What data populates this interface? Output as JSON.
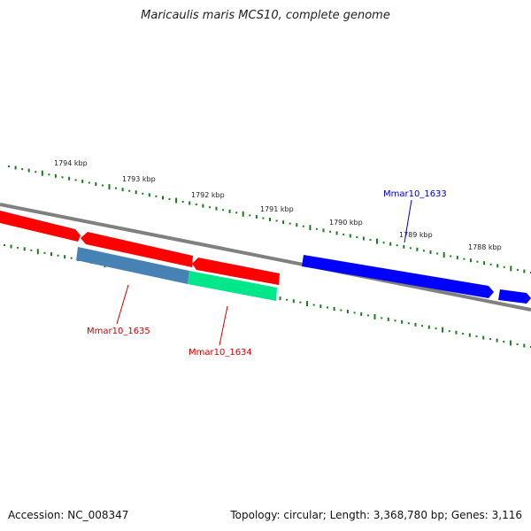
{
  "title": "Maricaulis maris MCS10, complete genome",
  "footer": {
    "accession": "Accession: NC_008347",
    "summary": "Topology: circular; Length: 3,368,780 bp; Genes: 3,116"
  },
  "colors": {
    "backbone": "#808080",
    "ticks": "#1e7a1e",
    "gene_red": "#ff0000",
    "gene_blue": "#0000ff",
    "gene_steelblue": "#4682b4",
    "gene_green": "#00e68a",
    "label_red": "#cc0000",
    "label_blue": "#0000cc"
  },
  "scale": {
    "unit": "kbp",
    "labels": [
      "1794 kbp",
      "1793 kbp",
      "1792 kbp",
      "1791 kbp",
      "1790 kbp",
      "1789 kbp",
      "1788 kbp"
    ]
  },
  "genes": [
    {
      "name": "Mmar10_1635",
      "color_key": "gene_steelblue",
      "label_color_key": "label_red"
    },
    {
      "name": "Mmar10_1634",
      "color_key": "gene_green",
      "label_color_key": "label_red"
    },
    {
      "name": "Mmar10_1633",
      "color_key": "gene_blue",
      "label_color_key": "label_blue"
    }
  ]
}
